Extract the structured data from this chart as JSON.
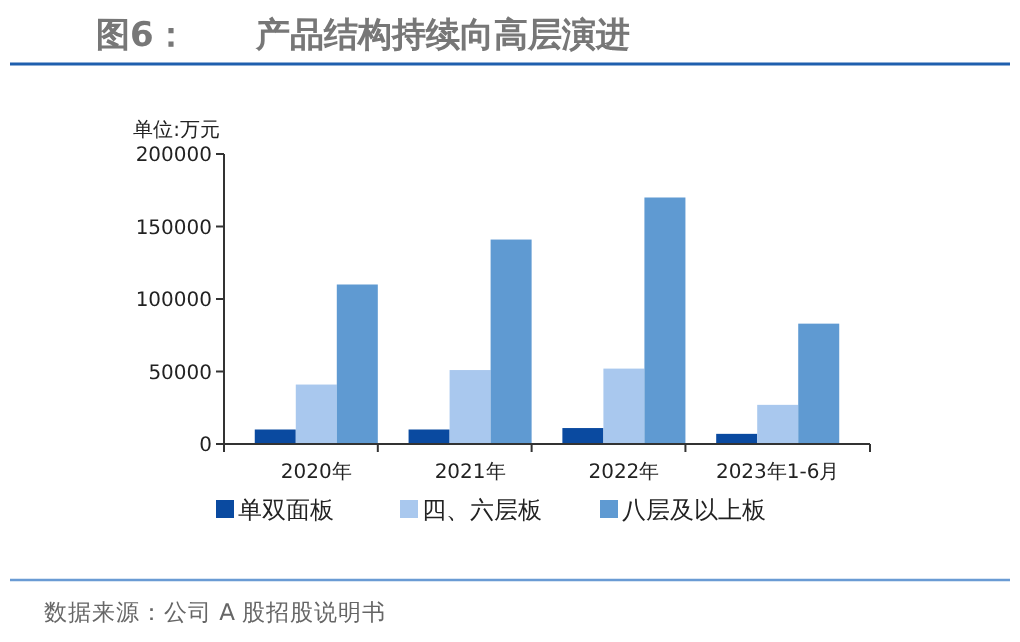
{
  "chart_data": {
    "type": "bar",
    "title": "图6：　　产品结构持续向高层演进",
    "ylabel": "单位:万元",
    "categories": [
      "2020年",
      "2021年",
      "2022年",
      "2023年1-6月"
    ],
    "series": [
      {
        "name": "单双面板",
        "color": "#0a4aa0",
        "values": [
          10000,
          10000,
          11000,
          7000
        ]
      },
      {
        "name": "四、六层板",
        "color": "#a9c8ee",
        "values": [
          41000,
          51000,
          52000,
          27000
        ]
      },
      {
        "name": "八层及以上板",
        "color": "#5f9ad2",
        "values": [
          110000,
          141000,
          170000,
          83000
        ]
      }
    ],
    "ylim": [
      0,
      200000
    ],
    "yticks": [
      0,
      50000,
      100000,
      150000,
      200000
    ],
    "grid": false,
    "legend": "bottom",
    "annotations": [
      "数据来源：公司 A 股招股说明书"
    ]
  }
}
